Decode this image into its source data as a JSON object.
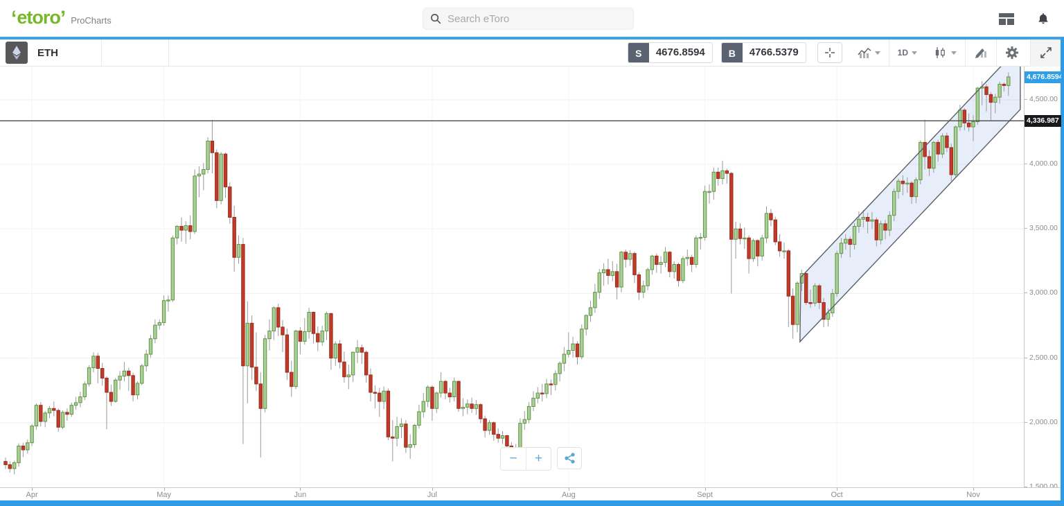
{
  "header": {
    "logo_text": "etoro",
    "logo_sub": "ProCharts",
    "search_placeholder": "Search eToro",
    "icons": [
      "layout-grid-icon",
      "bell-icon"
    ]
  },
  "toolbar": {
    "symbol": "ETH",
    "sell_label": "S",
    "sell_price": "4676.8594",
    "buy_label": "B",
    "buy_price": "4766.5379",
    "interval": "1D",
    "icon_names": [
      "ethereum-icon",
      "crosshair-icon",
      "chart-type-icon",
      "interval-dropdown",
      "candlestick-style-icon",
      "draw-tools-icon",
      "settings-gear-icon",
      "fullscreen-expand-icon"
    ]
  },
  "zoom_controls": {
    "minus": "−",
    "plus": "+",
    "share_icon": "share-icon"
  },
  "chart_data": {
    "type": "candlestick",
    "symbol": "ETH",
    "interval": "1D",
    "grid": true,
    "y_axis": {
      "side": "right",
      "tick_labels": [
        "4,500.00",
        "4,000.00",
        "3,500.00",
        "3,000.00",
        "2,500.00",
        "2,000.00",
        "1,500.00"
      ],
      "tick_values": [
        4500,
        4000,
        3500,
        3000,
        2500,
        2000,
        1500
      ],
      "top_price": 4757,
      "bottom_price": 1500
    },
    "x_axis": {
      "months": [
        {
          "label": "Apr",
          "day_index": 6
        },
        {
          "label": "May",
          "day_index": 36
        },
        {
          "label": "Jun",
          "day_index": 67
        },
        {
          "label": "Jul",
          "day_index": 97
        },
        {
          "label": "Aug",
          "day_index": 128
        },
        {
          "label": "Sept",
          "day_index": 159
        },
        {
          "label": "Oct",
          "day_index": 189
        },
        {
          "label": "Nov",
          "day_index": 220
        }
      ]
    },
    "colors": {
      "up": {
        "fill": "#a9cf9b",
        "stroke": "#61953f"
      },
      "down": {
        "fill": "#c13a27",
        "stroke": "#992d1e"
      },
      "wick": "#999999",
      "grid": "#f0f0f1"
    },
    "overlays": {
      "horizontal_line": {
        "price": 4336.987,
        "label": "4,336.987",
        "color": "#4a4a4a"
      },
      "current_price": {
        "value": 4676.8594,
        "label": "4,676.8594",
        "badge_color": "#2f9fe6"
      },
      "trend_channel": {
        "upper": {
          "i1": 180.8,
          "p1": 3126,
          "i2": 230.7,
          "p2": 4917
        },
        "lower": {
          "i1": 180.6,
          "p1": 2627,
          "i2": 230.7,
          "p2": 4425
        },
        "fill": "rgba(80,120,210,0.13)",
        "stroke": "#5a5f6a"
      }
    },
    "candles": [
      [
        1700,
        1730,
        1640,
        1675
      ],
      [
        1675,
        1700,
        1615,
        1645
      ],
      [
        1645,
        1705,
        1600,
        1690
      ],
      [
        1690,
        1840,
        1660,
        1820
      ],
      [
        1820,
        1845,
        1735,
        1790
      ],
      [
        1790,
        1870,
        1760,
        1845
      ],
      [
        1845,
        1990,
        1820,
        1975
      ],
      [
        1975,
        2150,
        1945,
        2135
      ],
      [
        2135,
        2160,
        1970,
        2010
      ],
      [
        2010,
        2090,
        1965,
        2075
      ],
      [
        2075,
        2130,
        2035,
        2110
      ],
      [
        2110,
        2165,
        2050,
        2095
      ],
      [
        2095,
        2110,
        1930,
        1965
      ],
      [
        1965,
        2095,
        1950,
        2080
      ],
      [
        2080,
        2110,
        2015,
        2065
      ],
      [
        2065,
        2155,
        2045,
        2135
      ],
      [
        2135,
        2200,
        2100,
        2155
      ],
      [
        2155,
        2240,
        2120,
        2200
      ],
      [
        2200,
        2320,
        2175,
        2300
      ],
      [
        2300,
        2445,
        2280,
        2425
      ],
      [
        2425,
        2545,
        2390,
        2515
      ],
      [
        2515,
        2540,
        2305,
        2420
      ],
      [
        2420,
        2465,
        2285,
        2345
      ],
      [
        2345,
        2360,
        1950,
        2235
      ],
      [
        2235,
        2295,
        2130,
        2165
      ],
      [
        2165,
        2345,
        2155,
        2330
      ],
      [
        2330,
        2400,
        2255,
        2360
      ],
      [
        2360,
        2470,
        2320,
        2400
      ],
      [
        2400,
        2425,
        2245,
        2365
      ],
      [
        2365,
        2385,
        2165,
        2215
      ],
      [
        2215,
        2320,
        2180,
        2305
      ],
      [
        2305,
        2455,
        2290,
        2440
      ],
      [
        2440,
        2565,
        2395,
        2530
      ],
      [
        2530,
        2680,
        2505,
        2650
      ],
      [
        2650,
        2800,
        2615,
        2755
      ],
      [
        2755,
        2800,
        2720,
        2775
      ],
      [
        2775,
        2985,
        2750,
        2945
      ],
      [
        2945,
        2985,
        2860,
        2950
      ],
      [
        2950,
        3450,
        2935,
        3430
      ],
      [
        3430,
        3530,
        3380,
        3520
      ],
      [
        3520,
        3590,
        3400,
        3490
      ],
      [
        3490,
        3560,
        3385,
        3525
      ],
      [
        3525,
        3605,
        3420,
        3480
      ],
      [
        3480,
        3960,
        3460,
        3910
      ],
      [
        3910,
        3985,
        3745,
        3925
      ],
      [
        3925,
        4010,
        3800,
        3960
      ],
      [
        3960,
        4210,
        3930,
        4180
      ],
      [
        4180,
        4345,
        3930,
        4090
      ],
      [
        4090,
        4115,
        3660,
        3720
      ],
      [
        3720,
        4095,
        3690,
        4080
      ],
      [
        4080,
        4090,
        3740,
        3825
      ],
      [
        3825,
        3860,
        3540,
        3590
      ],
      [
        3590,
        3680,
        3170,
        3280
      ],
      [
        3280,
        3450,
        3230,
        3380
      ],
      [
        3380,
        3430,
        1835,
        2440
      ],
      [
        2440,
        2940,
        2150,
        2770
      ],
      [
        2770,
        2830,
        2330,
        2430
      ],
      [
        2430,
        2700,
        2245,
        2300
      ],
      [
        2300,
        2390,
        1730,
        2110
      ],
      [
        2110,
        2680,
        2080,
        2650
      ],
      [
        2650,
        2800,
        2560,
        2710
      ],
      [
        2710,
        2900,
        2640,
        2890
      ],
      [
        2890,
        2920,
        2670,
        2740
      ],
      [
        2740,
        2795,
        2545,
        2680
      ],
      [
        2680,
        2730,
        2330,
        2390
      ],
      [
        2390,
        2480,
        2200,
        2280
      ],
      [
        2280,
        2720,
        2260,
        2710
      ],
      [
        2710,
        2740,
        2530,
        2630
      ],
      [
        2630,
        2810,
        2605,
        2705
      ],
      [
        2705,
        2890,
        2650,
        2855
      ],
      [
        2855,
        2860,
        2615,
        2690
      ],
      [
        2690,
        2745,
        2555,
        2625
      ],
      [
        2625,
        2750,
        2595,
        2710
      ],
      [
        2710,
        2860,
        2640,
        2845
      ],
      [
        2845,
        2850,
        2410,
        2500
      ],
      [
        2500,
        2630,
        2440,
        2610
      ],
      [
        2610,
        2640,
        2420,
        2470
      ],
      [
        2470,
        2550,
        2310,
        2355
      ],
      [
        2355,
        2450,
        2260,
        2370
      ],
      [
        2370,
        2550,
        2315,
        2545
      ],
      [
        2545,
        2640,
        2460,
        2580
      ],
      [
        2580,
        2605,
        2455,
        2545
      ],
      [
        2545,
        2560,
        2310,
        2370
      ],
      [
        2370,
        2420,
        2165,
        2235
      ],
      [
        2235,
        2290,
        2110,
        2230
      ],
      [
        2230,
        2270,
        2045,
        2165
      ],
      [
        2165,
        2280,
        2105,
        2245
      ],
      [
        2245,
        2265,
        1865,
        1890
      ],
      [
        1890,
        2020,
        1700,
        1880
      ],
      [
        1880,
        2045,
        1815,
        1970
      ],
      [
        1970,
        2035,
        1880,
        1990
      ],
      [
        1990,
        2020,
        1765,
        1810
      ],
      [
        1810,
        1910,
        1720,
        1830
      ],
      [
        1830,
        1990,
        1805,
        1980
      ],
      [
        1980,
        2140,
        1955,
        2085
      ],
      [
        2085,
        2230,
        2040,
        2165
      ],
      [
        2165,
        2290,
        2120,
        2275
      ],
      [
        2275,
        2290,
        2015,
        2110
      ],
      [
        2110,
        2240,
        2075,
        2230
      ],
      [
        2230,
        2390,
        2195,
        2320
      ],
      [
        2320,
        2330,
        2180,
        2230
      ],
      [
        2230,
        2270,
        2155,
        2200
      ],
      [
        2200,
        2350,
        2165,
        2320
      ],
      [
        2320,
        2325,
        2085,
        2110
      ],
      [
        2110,
        2190,
        2050,
        2120
      ],
      [
        2120,
        2180,
        2065,
        2145
      ],
      [
        2145,
        2195,
        2075,
        2110
      ],
      [
        2110,
        2175,
        2060,
        2140
      ],
      [
        2140,
        2150,
        1995,
        2030
      ],
      [
        2030,
        2055,
        1885,
        1940
      ],
      [
        1940,
        2020,
        1905,
        2000
      ],
      [
        2000,
        2010,
        1860,
        1910
      ],
      [
        1910,
        1955,
        1845,
        1880
      ],
      [
        1880,
        1935,
        1835,
        1900
      ],
      [
        1900,
        1905,
        1790,
        1820
      ],
      [
        1820,
        1850,
        1745,
        1785
      ],
      [
        1785,
        1835,
        1720,
        1790
      ],
      [
        1790,
        2035,
        1755,
        1995
      ],
      [
        1995,
        2090,
        1945,
        2025
      ],
      [
        2025,
        2160,
        1995,
        2125
      ],
      [
        2125,
        2245,
        2090,
        2190
      ],
      [
        2190,
        2275,
        2150,
        2230
      ],
      [
        2230,
        2300,
        2165,
        2225
      ],
      [
        2225,
        2340,
        2190,
        2300
      ],
      [
        2300,
        2335,
        2215,
        2295
      ],
      [
        2295,
        2405,
        2250,
        2380
      ],
      [
        2380,
        2475,
        2320,
        2460
      ],
      [
        2460,
        2585,
        2400,
        2530
      ],
      [
        2530,
        2700,
        2505,
        2560
      ],
      [
        2560,
        2665,
        2505,
        2610
      ],
      [
        2610,
        2630,
        2450,
        2510
      ],
      [
        2510,
        2760,
        2490,
        2725
      ],
      [
        2725,
        2840,
        2675,
        2830
      ],
      [
        2830,
        2945,
        2780,
        2890
      ],
      [
        2890,
        3075,
        2850,
        3010
      ],
      [
        3010,
        3190,
        2960,
        3160
      ],
      [
        3160,
        3235,
        3060,
        3185
      ],
      [
        3185,
        3270,
        3070,
        3140
      ],
      [
        3140,
        3250,
        3095,
        3170
      ],
      [
        3170,
        3230,
        2955,
        3050
      ],
      [
        3050,
        3330,
        3010,
        3320
      ],
      [
        3320,
        3340,
        3200,
        3265
      ],
      [
        3265,
        3335,
        3215,
        3310
      ],
      [
        3310,
        3325,
        3080,
        3145
      ],
      [
        3145,
        3165,
        2950,
        3010
      ],
      [
        3010,
        3100,
        2965,
        3060
      ],
      [
        3060,
        3200,
        3025,
        3185
      ],
      [
        3185,
        3300,
        3145,
        3290
      ],
      [
        3290,
        3310,
        3160,
        3225
      ],
      [
        3225,
        3290,
        3155,
        3240
      ],
      [
        3240,
        3360,
        3205,
        3320
      ],
      [
        3320,
        3330,
        3125,
        3170
      ],
      [
        3170,
        3250,
        3115,
        3225
      ],
      [
        3225,
        3240,
        3055,
        3100
      ],
      [
        3100,
        3290,
        3080,
        3270
      ],
      [
        3270,
        3340,
        3215,
        3280
      ],
      [
        3280,
        3300,
        3165,
        3225
      ],
      [
        3225,
        3450,
        3200,
        3430
      ],
      [
        3430,
        3470,
        3340,
        3435
      ],
      [
        3435,
        3835,
        3410,
        3790
      ],
      [
        3790,
        3845,
        3695,
        3790
      ],
      [
        3790,
        3975,
        3725,
        3940
      ],
      [
        3940,
        3975,
        3835,
        3890
      ],
      [
        3890,
        4028,
        3845,
        3950
      ],
      [
        3950,
        3966,
        3850,
        3930
      ],
      [
        3930,
        3943,
        3000,
        3420
      ],
      [
        3420,
        3555,
        3270,
        3500
      ],
      [
        3500,
        3545,
        3380,
        3425
      ],
      [
        3425,
        3510,
        3345,
        3430
      ],
      [
        3430,
        3450,
        3155,
        3270
      ],
      [
        3270,
        3425,
        3245,
        3410
      ],
      [
        3410,
        3420,
        3210,
        3290
      ],
      [
        3290,
        3455,
        3255,
        3430
      ],
      [
        3430,
        3675,
        3390,
        3620
      ],
      [
        3620,
        3655,
        3520,
        3570
      ],
      [
        3570,
        3595,
        3375,
        3400
      ],
      [
        3400,
        3460,
        3285,
        3330
      ],
      [
        3330,
        3395,
        3270,
        3330
      ],
      [
        3330,
        3343,
        2740,
        2980
      ],
      [
        2980,
        3040,
        2650,
        2760
      ],
      [
        2760,
        3095,
        2700,
        3080
      ],
      [
        3080,
        3185,
        3020,
        3155
      ],
      [
        3155,
        3160,
        2910,
        2930
      ],
      [
        2930,
        3030,
        2890,
        2925
      ],
      [
        2925,
        3080,
        2900,
        3060
      ],
      [
        3060,
        3075,
        2880,
        2930
      ],
      [
        2930,
        2965,
        2740,
        2800
      ],
      [
        2800,
        2885,
        2745,
        2850
      ],
      [
        2850,
        3035,
        2820,
        3000
      ],
      [
        3000,
        3330,
        2975,
        3310
      ],
      [
        3310,
        3430,
        3275,
        3390
      ],
      [
        3390,
        3460,
        3340,
        3420
      ],
      [
        3420,
        3440,
        3280,
        3380
      ],
      [
        3380,
        3545,
        3340,
        3520
      ],
      [
        3520,
        3635,
        3470,
        3575
      ],
      [
        3575,
        3645,
        3510,
        3590
      ],
      [
        3590,
        3625,
        3465,
        3560
      ],
      [
        3560,
        3630,
        3500,
        3570
      ],
      [
        3570,
        3590,
        3365,
        3415
      ],
      [
        3415,
        3565,
        3380,
        3540
      ],
      [
        3540,
        3570,
        3420,
        3490
      ],
      [
        3490,
        3635,
        3445,
        3605
      ],
      [
        3605,
        3815,
        3560,
        3790
      ],
      [
        3790,
        3890,
        3735,
        3870
      ],
      [
        3870,
        3915,
        3760,
        3850
      ],
      [
        3850,
        3900,
        3780,
        3855
      ],
      [
        3855,
        3870,
        3695,
        3750
      ],
      [
        3750,
        3900,
        3700,
        3880
      ],
      [
        3880,
        4185,
        3845,
        4170
      ],
      [
        4170,
        4345,
        3960,
        4060
      ],
      [
        4060,
        4110,
        3910,
        3970
      ],
      [
        3970,
        4180,
        3935,
        4170
      ],
      [
        4170,
        4190,
        4020,
        4080
      ],
      [
        4080,
        4240,
        4050,
        4220
      ],
      [
        4220,
        4245,
        4095,
        4130
      ],
      [
        4130,
        4160,
        3870,
        3920
      ],
      [
        3920,
        4300,
        3895,
        4290
      ],
      [
        4290,
        4460,
        4260,
        4420
      ],
      [
        4420,
        4435,
        4265,
        4320
      ],
      [
        4320,
        4395,
        4255,
        4290
      ],
      [
        4290,
        4380,
        4180,
        4330
      ],
      [
        4330,
        4600,
        4305,
        4590
      ],
      [
        4590,
        4645,
        4455,
        4600
      ],
      [
        4600,
        4620,
        4410,
        4540
      ],
      [
        4540,
        4560,
        4340,
        4480
      ],
      [
        4480,
        4545,
        4395,
        4520
      ],
      [
        4520,
        4640,
        4470,
        4620
      ],
      [
        4620,
        4635,
        4565,
        4610
      ],
      [
        4610,
        4712,
        4530,
        4677
      ]
    ]
  }
}
